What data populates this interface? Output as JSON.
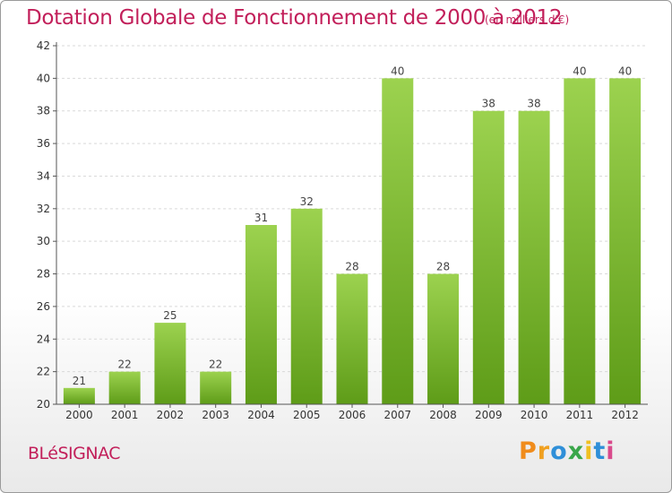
{
  "header": {
    "title": "Dotation Globale de Fonctionnement de 2000 à 2012",
    "unit": "(en milliers d'€)"
  },
  "commune": "BLéSIGNAC",
  "brand": {
    "letters": [
      "P",
      "r",
      "o",
      "x",
      "i",
      "t",
      "i"
    ],
    "colors": [
      "#f08c1c",
      "#f0a020",
      "#2f8fd8",
      "#3aa64a",
      "#f0c020",
      "#2f8fd8",
      "#d94a8c"
    ]
  },
  "colors": {
    "accent": "#c21f5a",
    "bar_top": "#9cd24f",
    "bar_bottom": "#5e9c18",
    "grid": "#d9d9d9"
  },
  "chart_data": {
    "type": "bar",
    "categories": [
      "2000",
      "2001",
      "2002",
      "2003",
      "2004",
      "2005",
      "2006",
      "2007",
      "2008",
      "2009",
      "2010",
      "2011",
      "2012"
    ],
    "values": [
      21,
      22,
      25,
      22,
      31,
      32,
      28,
      40,
      28,
      38,
      38,
      40,
      40
    ],
    "ylim": [
      20,
      42
    ],
    "yticks": [
      20,
      22,
      24,
      26,
      28,
      30,
      32,
      34,
      36,
      38,
      40,
      42
    ],
    "grid": "horizontal dashed",
    "data_labels": true
  }
}
